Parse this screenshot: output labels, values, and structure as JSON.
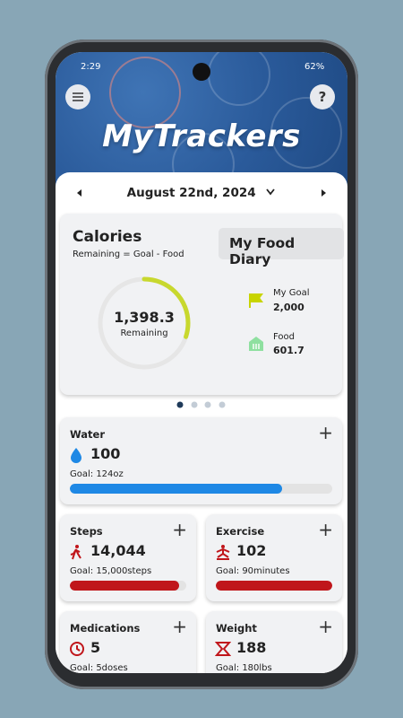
{
  "status_bar": {
    "time": "2:29",
    "battery": "62%"
  },
  "header": {
    "title": "MyTrackers"
  },
  "date": "August 22nd, 2024",
  "calories": {
    "title": "Calories",
    "subtitle": "Remaining = Goal - Food",
    "diary_button": "My Food Diary",
    "remaining_value": "1,398.3",
    "remaining_label": "Remaining",
    "progress": 0.3,
    "goal_label": "My Goal",
    "goal_value": "2,000",
    "food_label": "Food",
    "food_value": "601.7"
  },
  "trackers": [
    {
      "name": "Water",
      "value": "100",
      "goal": "Goal: 124oz",
      "progress": 0.81
    },
    {
      "name": "Steps",
      "value": "14,044",
      "goal": "Goal: 15,000steps",
      "progress": 0.94
    },
    {
      "name": "Exercise",
      "value": "102",
      "goal": "Goal: 90minutes",
      "progress": 1
    },
    {
      "name": "Medications",
      "value": "5",
      "goal": "Goal: 5doses"
    },
    {
      "name": "Weight",
      "value": "188",
      "goal": "Goal: 180lbs"
    }
  ]
}
